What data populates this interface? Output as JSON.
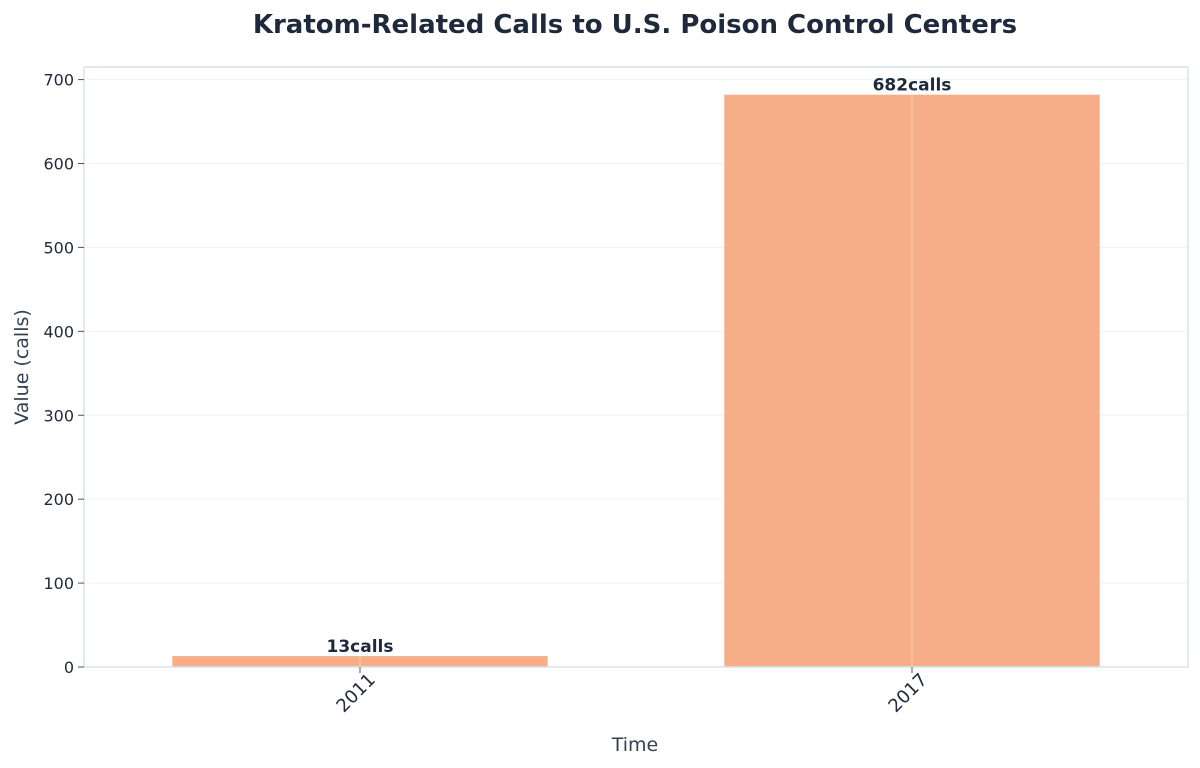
{
  "chart_data": {
    "type": "bar",
    "title": "Kratom-Related Calls to U.S. Poison Control Centers",
    "xlabel": "Time",
    "ylabel": "Value (calls)",
    "categories": [
      "2011",
      "2017"
    ],
    "values": [
      13,
      682
    ],
    "value_suffix": "calls",
    "ylim": [
      0,
      715
    ],
    "yticks": [
      0,
      100,
      200,
      300,
      400,
      500,
      600,
      700
    ],
    "grid": true,
    "bar_color": "#f6ae89",
    "text_color": "#1e293b",
    "frame_color": "#d9e4e8"
  }
}
